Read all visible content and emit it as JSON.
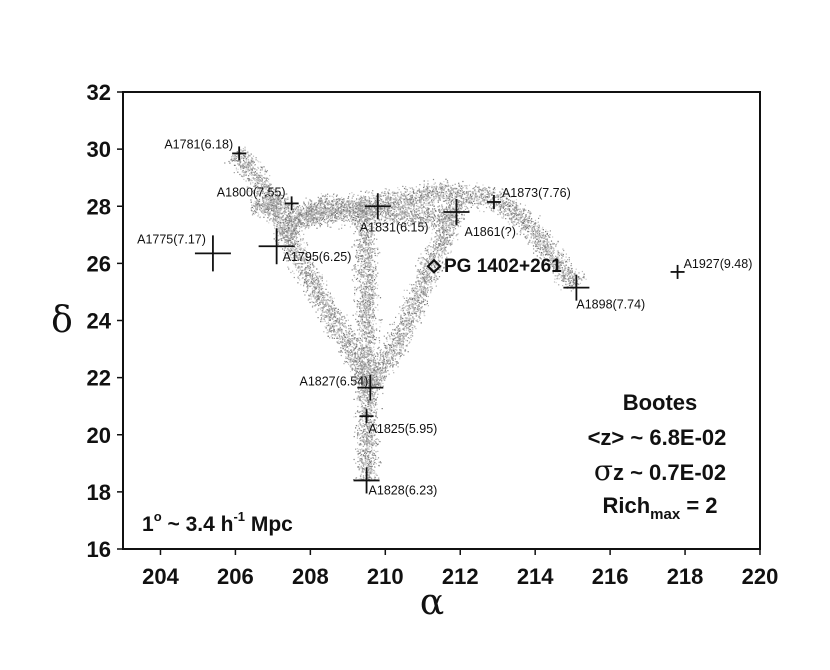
{
  "chart_data": {
    "type": "scatter",
    "title": "",
    "xlabel": "α",
    "ylabel": "δ",
    "xlim": [
      203,
      220
    ],
    "ylim": [
      16,
      32
    ],
    "xticks": [
      "204",
      "206",
      "208",
      "210",
      "212",
      "214",
      "216",
      "218",
      "220"
    ],
    "yticks": [
      "16",
      "18",
      "20",
      "22",
      "24",
      "26",
      "28",
      "30",
      "32"
    ],
    "grid": false,
    "clusters": [
      {
        "label": "A1781(6.18)",
        "x": 206.1,
        "y": 29.85,
        "mark_size": "small"
      },
      {
        "label": "A1800(7.55)",
        "x": 207.5,
        "y": 28.1,
        "mark_size": "small"
      },
      {
        "label": "A1775(7.17)",
        "x": 205.4,
        "y": 26.35,
        "mark_size": "large"
      },
      {
        "label": "A1795(6.25)",
        "x": 207.1,
        "y": 26.6,
        "mark_size": "large"
      },
      {
        "label": "A1831(6.15)",
        "x": 209.8,
        "y": 28.0,
        "mark_size": "medium"
      },
      {
        "label": "A1861(?)",
        "x": 211.9,
        "y": 27.8,
        "mark_size": "medium"
      },
      {
        "label": "A1873(7.76)",
        "x": 212.9,
        "y": 28.15,
        "mark_size": "small"
      },
      {
        "label": "A1898(7.74)",
        "x": 215.1,
        "y": 25.15,
        "mark_size": "medium"
      },
      {
        "label": "A1927(9.48)",
        "x": 217.8,
        "y": 25.7,
        "mark_size": "small"
      },
      {
        "label": "A1827(6.54)",
        "x": 209.6,
        "y": 21.65,
        "mark_size": "medium"
      },
      {
        "label": "A1825(5.95)",
        "x": 209.5,
        "y": 20.65,
        "mark_size": "small"
      },
      {
        "label": "A1828(6.23)",
        "x": 209.5,
        "y": 18.4,
        "mark_size": "medium"
      }
    ],
    "special_object": {
      "label": "PG 1402+261",
      "x": 211.3,
      "y": 25.9,
      "marker": "diamond"
    },
    "filament_paths": [
      [
        [
          206.0,
          29.9
        ],
        [
          206.8,
          28.6
        ],
        [
          207.3,
          27.2
        ],
        [
          208.0,
          25.4
        ],
        [
          208.8,
          23.6
        ],
        [
          209.4,
          22.2
        ],
        [
          209.6,
          21.6
        ]
      ],
      [
        [
          207.2,
          27.0
        ],
        [
          208.2,
          28.0
        ],
        [
          209.8,
          28.1
        ],
        [
          211.4,
          28.5
        ],
        [
          212.9,
          28.3
        ],
        [
          213.8,
          27.4
        ],
        [
          214.6,
          26.0
        ],
        [
          215.1,
          25.2
        ]
      ],
      [
        [
          207.4,
          27.7
        ],
        [
          209.8,
          27.8
        ],
        [
          211.8,
          27.6
        ]
      ],
      [
        [
          209.4,
          28.0
        ],
        [
          209.5,
          25.0
        ],
        [
          209.5,
          22.0
        ],
        [
          209.5,
          20.0
        ],
        [
          209.5,
          18.4
        ]
      ],
      [
        [
          212.0,
          28.2
        ],
        [
          211.2,
          26.0
        ],
        [
          210.6,
          24.0
        ],
        [
          210.0,
          22.6
        ],
        [
          209.6,
          21.7
        ]
      ],
      [
        [
          206.4,
          28.0
        ],
        [
          207.4,
          28.1
        ]
      ]
    ],
    "info_box": {
      "name": "Bootes",
      "mean_z": "<z> ~ 6.8E-02",
      "sigma_symbol": "σ",
      "sigma_z": "z ~ 0.7E-02",
      "rich_prefix": "Rich",
      "rich_sub": "max",
      "rich_suffix": " = 2"
    },
    "scale_note": {
      "prefix": "1",
      "degree": "o",
      "middle": " ~ 3.4 h",
      "exponent": "-1",
      "suffix": " Mpc"
    }
  }
}
